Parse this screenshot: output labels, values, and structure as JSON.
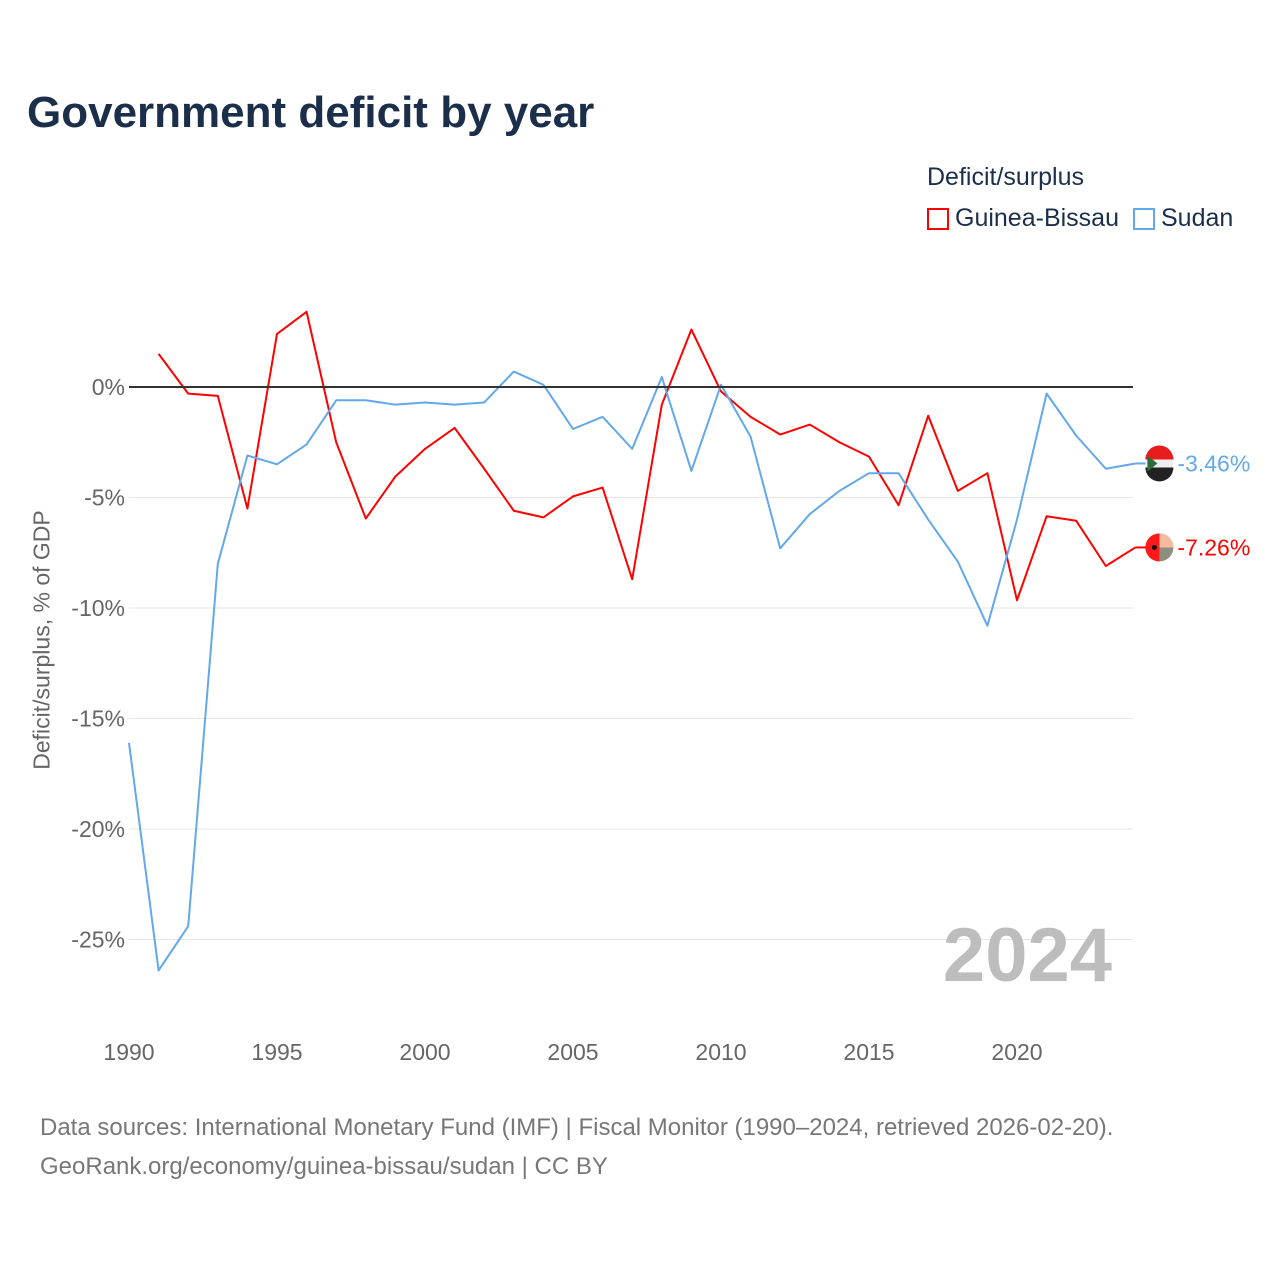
{
  "title": "Government deficit by year",
  "legend": {
    "title": "Deficit/surplus"
  },
  "year_label": "2024",
  "source": {
    "line1": "Data sources: International Monetary Fund (IMF) | Fiscal Monitor (1990–2024, retrieved 2026-02-20).",
    "line2": "GeoRank.org/economy/guinea-bissau/sudan | CC BY"
  },
  "chart_data": {
    "type": "line",
    "title": "Government deficit by year",
    "xlabel": "",
    "ylabel": "Deficit/surplus, % of GDP",
    "xlim": [
      1990,
      2024
    ],
    "ylim": [
      -27,
      4
    ],
    "x_ticks": [
      1990,
      1995,
      2000,
      2005,
      2010,
      2015,
      2020
    ],
    "y_ticks": [
      0,
      -5,
      -10,
      -15,
      -20,
      -25
    ],
    "y_tick_labels": [
      "0%",
      "-5%",
      "-10%",
      "-15%",
      "-20%",
      "-25%"
    ],
    "grid": true,
    "legend_position": "top-right",
    "series": [
      {
        "name": "Guinea-Bissau",
        "color": "#ff0000",
        "end_label": "-7.26%",
        "x": [
          1991,
          1992,
          1993,
          1994,
          1995,
          1996,
          1997,
          1998,
          1999,
          2000,
          2001,
          2002,
          2003,
          2004,
          2005,
          2006,
          2007,
          2008,
          2009,
          2010,
          2011,
          2012,
          2013,
          2014,
          2015,
          2016,
          2017,
          2018,
          2019,
          2020,
          2021,
          2022,
          2023,
          2024
        ],
        "values": [
          1.5,
          -0.3,
          -0.4,
          -5.5,
          2.4,
          3.4,
          -2.5,
          -5.95,
          -4.05,
          -2.8,
          -1.85,
          -3.7,
          -5.6,
          -5.9,
          -4.95,
          -4.55,
          -8.7,
          -0.8,
          2.6,
          -0.2,
          -1.35,
          -2.15,
          -1.7,
          -2.5,
          -3.15,
          -5.35,
          -1.3,
          -4.7,
          -3.9,
          -9.65,
          -5.85,
          -6.05,
          -8.1,
          -7.26
        ]
      },
      {
        "name": "Sudan",
        "color": "#62a8ea",
        "end_label": "-3.46%",
        "x": [
          1990,
          1991,
          1992,
          1993,
          1994,
          1995,
          1996,
          1997,
          1998,
          1999,
          2000,
          2001,
          2002,
          2003,
          2004,
          2005,
          2006,
          2007,
          2008,
          2009,
          2010,
          2011,
          2012,
          2013,
          2014,
          2015,
          2016,
          2017,
          2018,
          2019,
          2020,
          2021,
          2022,
          2023,
          2024
        ],
        "values": [
          -16.1,
          -26.4,
          -24.4,
          -8.0,
          -3.1,
          -3.5,
          -2.6,
          -0.6,
          -0.6,
          -0.8,
          -0.7,
          -0.8,
          -0.7,
          0.7,
          0.1,
          -1.9,
          -1.35,
          -2.8,
          0.45,
          -3.8,
          0.1,
          -2.25,
          -7.3,
          -5.75,
          -4.7,
          -3.9,
          -3.9,
          -6.0,
          -7.9,
          -10.8,
          -6.0,
          -0.3,
          -2.2,
          -3.7,
          -3.46
        ]
      }
    ]
  }
}
